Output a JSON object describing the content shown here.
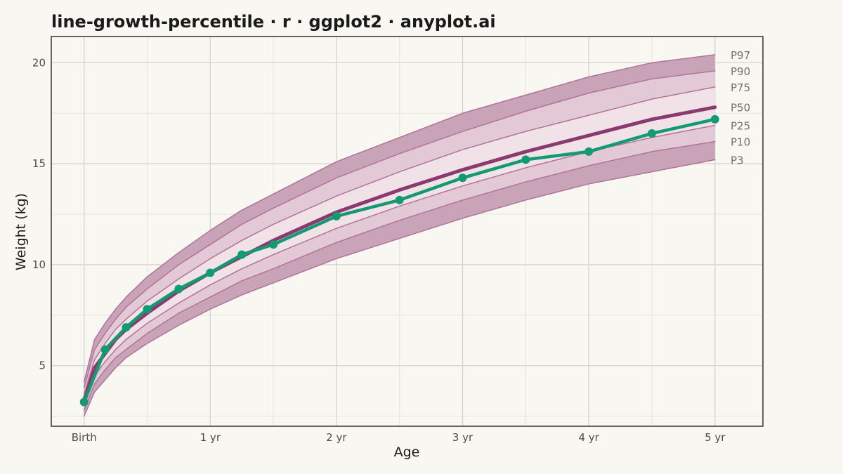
{
  "chart_data": {
    "type": "line",
    "title": "line-growth-percentile · r · ggplot2 · anyplot.ai",
    "xlabel": "Age",
    "ylabel": "Weight (kg)",
    "xlim": [
      -0.26,
      5.38
    ],
    "ylim": [
      2.0,
      21.3
    ],
    "x_ticks": [
      0,
      1,
      2,
      3,
      4,
      5
    ],
    "x_tick_labels": [
      "Birth",
      "1 yr",
      "2 yr",
      "3 yr",
      "4 yr",
      "5 yr"
    ],
    "y_ticks": [
      5,
      10,
      15,
      20
    ],
    "y_tick_labels": [
      "5",
      "10",
      "15",
      "20"
    ],
    "grid": true,
    "legend": "none",
    "colors": {
      "band_outer": "#c9a3b8",
      "band_mid": "#e2c9d5",
      "band_inner": "#f0e2e6",
      "band_line": "#b07399",
      "median": "#8b3a70",
      "child": "#129a72",
      "background": "#f9f7f1",
      "grid_major": "#d6d3cf",
      "grid_minor": "#e6e3de"
    },
    "percentiles": {
      "x": [
        0,
        0.0833,
        0.1667,
        0.25,
        0.3333,
        0.5,
        0.75,
        1,
        1.25,
        1.5,
        2,
        2.5,
        3,
        3.5,
        4,
        4.5,
        5
      ],
      "series": [
        {
          "name": "P3",
          "values": [
            2.5,
            3.7,
            4.3,
            4.9,
            5.4,
            6.1,
            7.0,
            7.8,
            8.5,
            9.1,
            10.3,
            11.3,
            12.3,
            13.2,
            14.0,
            14.6,
            15.2
          ]
        },
        {
          "name": "P10",
          "values": [
            2.8,
            4.1,
            4.8,
            5.4,
            5.8,
            6.6,
            7.6,
            8.4,
            9.2,
            9.8,
            11.1,
            12.2,
            13.2,
            14.1,
            14.9,
            15.6,
            16.1
          ]
        },
        {
          "name": "P25",
          "values": [
            3.0,
            4.5,
            5.2,
            5.8,
            6.3,
            7.1,
            8.1,
            9.0,
            9.8,
            10.5,
            11.8,
            12.9,
            13.9,
            14.8,
            15.6,
            16.3,
            16.9
          ]
        },
        {
          "name": "P50",
          "values": [
            3.3,
            4.9,
            5.6,
            6.3,
            6.8,
            7.6,
            8.7,
            9.6,
            10.4,
            11.2,
            12.6,
            13.7,
            14.7,
            15.6,
            16.4,
            17.2,
            17.8
          ]
        },
        {
          "name": "P75",
          "values": [
            3.6,
            5.3,
            6.1,
            6.8,
            7.3,
            8.2,
            9.3,
            10.3,
            11.2,
            12.0,
            13.4,
            14.6,
            15.7,
            16.6,
            17.4,
            18.2,
            18.8
          ]
        },
        {
          "name": "P90",
          "values": [
            3.9,
            5.8,
            6.6,
            7.3,
            7.9,
            8.8,
            10.0,
            11.0,
            12.0,
            12.8,
            14.3,
            15.5,
            16.6,
            17.6,
            18.5,
            19.2,
            19.6
          ]
        },
        {
          "name": "P97",
          "values": [
            4.2,
            6.3,
            7.1,
            7.8,
            8.4,
            9.4,
            10.6,
            11.7,
            12.7,
            13.5,
            15.1,
            16.3,
            17.5,
            18.4,
            19.3,
            20.0,
            20.4
          ]
        }
      ]
    },
    "child": {
      "x": [
        0,
        0.1667,
        0.3333,
        0.5,
        0.75,
        1,
        1.25,
        1.5,
        2,
        2.5,
        3,
        3.5,
        4,
        4.5,
        5
      ],
      "values": [
        3.2,
        5.8,
        6.9,
        7.8,
        8.8,
        9.6,
        10.5,
        11.0,
        12.4,
        13.2,
        14.3,
        15.2,
        15.6,
        16.5,
        17.2
      ]
    }
  }
}
